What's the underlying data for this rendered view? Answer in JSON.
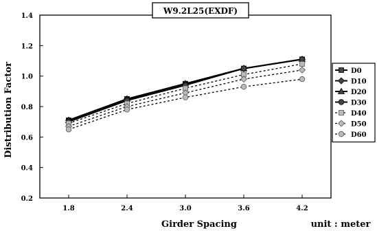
{
  "chart_data": {
    "type": "line",
    "title": "W9.2L25(EXDF)",
    "xlabel": "Girder Spacing",
    "ylabel": "Distribution Factor",
    "unit_note": "unit : meter",
    "categories": [
      "1.8",
      "2.4",
      "3.0",
      "3.6",
      "4.2"
    ],
    "ylim": [
      0.2,
      1.4
    ],
    "yticks": [
      "0.2",
      "0.4",
      "0.6",
      "0.8",
      "1.0",
      "1.2",
      "1.4"
    ],
    "grid": false,
    "legend_position": "right",
    "series": [
      {
        "name": "D0",
        "values": [
          0.71,
          0.85,
          0.95,
          1.05,
          1.11
        ],
        "style": "solid",
        "marker": "square"
      },
      {
        "name": "D10",
        "values": [
          0.71,
          0.85,
          0.95,
          1.05,
          1.11
        ],
        "style": "solid",
        "marker": "diamond"
      },
      {
        "name": "D20",
        "values": [
          0.71,
          0.85,
          0.95,
          1.05,
          1.11
        ],
        "style": "solid",
        "marker": "triangle"
      },
      {
        "name": "D30",
        "values": [
          0.7,
          0.84,
          0.94,
          1.05,
          1.11
        ],
        "style": "solid",
        "marker": "circle"
      },
      {
        "name": "D40",
        "values": [
          0.69,
          0.82,
          0.92,
          1.01,
          1.08
        ],
        "style": "dashed",
        "marker": "square"
      },
      {
        "name": "D50",
        "values": [
          0.67,
          0.8,
          0.89,
          0.98,
          1.04
        ],
        "style": "dashed",
        "marker": "diamond"
      },
      {
        "name": "D60",
        "values": [
          0.65,
          0.78,
          0.86,
          0.93,
          0.98
        ],
        "style": "dashed",
        "marker": "circle"
      }
    ]
  }
}
